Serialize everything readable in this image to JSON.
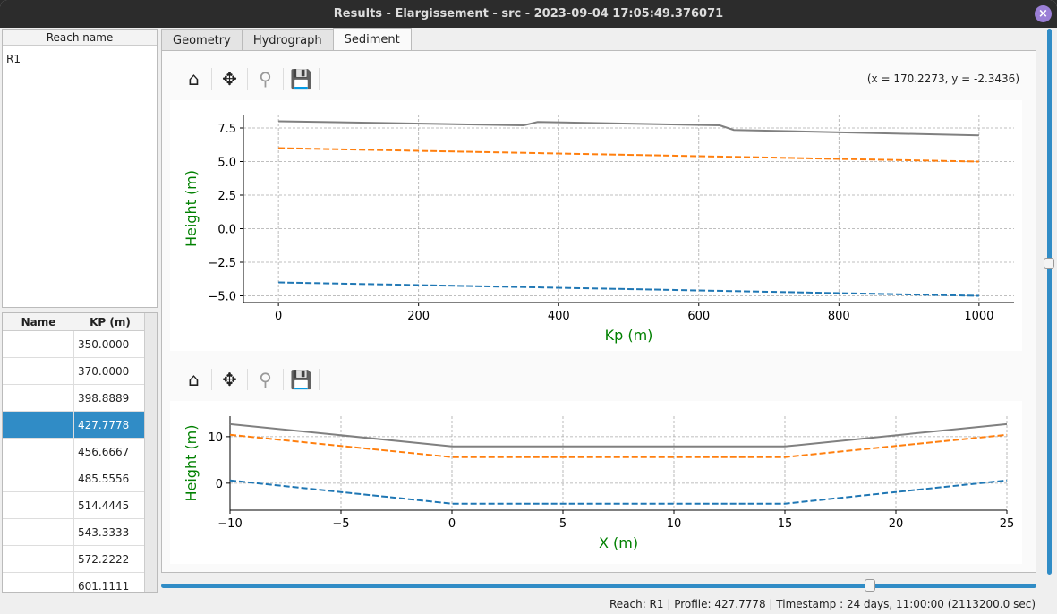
{
  "window": {
    "title": "Results - Elargissement - src - 2023-09-04 17:05:49.376071",
    "close_icon": "close-icon"
  },
  "reach_table": {
    "header": "Reach name",
    "rows": [
      "R1"
    ]
  },
  "profile_table": {
    "headers": [
      "Name",
      "KP (m)"
    ],
    "rows": [
      {
        "name": "",
        "kp": "350.0000"
      },
      {
        "name": "",
        "kp": "370.0000"
      },
      {
        "name": "",
        "kp": "398.8889"
      },
      {
        "name": "",
        "kp": "427.7778",
        "selected": true
      },
      {
        "name": "",
        "kp": "456.6667"
      },
      {
        "name": "",
        "kp": "485.5556"
      },
      {
        "name": "",
        "kp": "514.4445"
      },
      {
        "name": "",
        "kp": "543.3333"
      },
      {
        "name": "",
        "kp": "572.2222"
      },
      {
        "name": "",
        "kp": "601.1111"
      }
    ]
  },
  "tabs": [
    {
      "label": "Geometry"
    },
    {
      "label": "Hydrograph"
    },
    {
      "label": "Sediment",
      "active": true
    }
  ],
  "toolbar": {
    "icons": [
      "home-icon",
      "move-icon",
      "zoom-icon",
      "save-icon"
    ],
    "coords": "(x = 170.2273,   y = -2.3436)"
  },
  "chart_data": [
    {
      "type": "line",
      "xlabel": "Kp (m)",
      "ylabel": "Height (m)",
      "xlim": [
        -50,
        1050
      ],
      "ylim": [
        -5.5,
        8.5
      ],
      "grid": true,
      "xticks": [
        0,
        200,
        400,
        600,
        800,
        1000
      ],
      "yticks": [
        -5.0,
        -2.5,
        0.0,
        2.5,
        5.0,
        7.5
      ],
      "series": [
        {
          "color": "#808080",
          "style": "solid",
          "x": [
            0,
            350,
            370,
            630,
            650,
            1000
          ],
          "y": [
            8.0,
            7.7,
            7.95,
            7.7,
            7.35,
            6.95
          ]
        },
        {
          "color": "#ff7f0e",
          "style": "dashed",
          "x": [
            0,
            1000
          ],
          "y": [
            6.0,
            5.0
          ]
        },
        {
          "color": "#1f77b4",
          "style": "dashed",
          "x": [
            0,
            1000
          ],
          "y": [
            -4.0,
            -5.0
          ]
        }
      ]
    },
    {
      "type": "line",
      "xlabel": "X (m)",
      "ylabel": "Height (m)",
      "xlim": [
        -10,
        25
      ],
      "ylim": [
        -5.8,
        14.4
      ],
      "grid": true,
      "xticks": [
        -10,
        -5,
        0,
        5,
        10,
        15,
        20,
        25
      ],
      "yticks": [
        0,
        10
      ],
      "series": [
        {
          "color": "#808080",
          "style": "solid",
          "x": [
            -10,
            0,
            15,
            25
          ],
          "y": [
            12.7,
            7.9,
            7.9,
            12.7
          ]
        },
        {
          "color": "#ff7f0e",
          "style": "dashed",
          "x": [
            -10,
            0,
            15,
            25
          ],
          "y": [
            10.4,
            5.6,
            5.6,
            10.4
          ]
        },
        {
          "color": "#1f77b4",
          "style": "dashed",
          "x": [
            -10,
            0,
            15,
            25
          ],
          "y": [
            0.6,
            -4.4,
            -4.4,
            0.6
          ]
        }
      ]
    }
  ],
  "status": "Reach: R1 | Profile: 427.7778 | Timestamp : 24 days, 11:00:00 (2113200.0 sec)",
  "profile_slider": {
    "value_fraction": 0.81
  }
}
